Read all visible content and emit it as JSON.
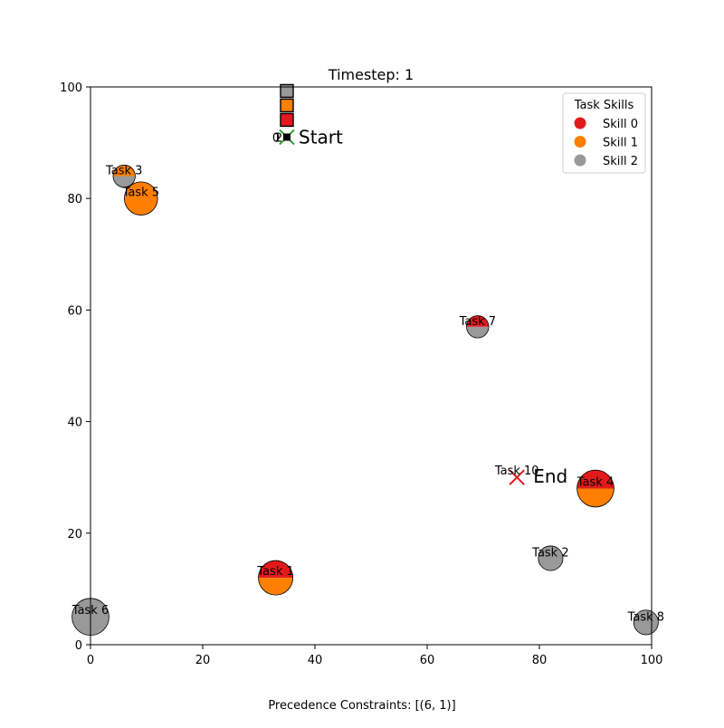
{
  "chart_data": {
    "type": "scatter",
    "title": "Timestep: 1",
    "xlim": [
      0,
      100
    ],
    "ylim": [
      0,
      100
    ],
    "x_ticks": [
      0,
      20,
      40,
      60,
      80,
      100
    ],
    "y_ticks": [
      0,
      20,
      40,
      60,
      80,
      100
    ],
    "grid": false,
    "legend": {
      "title": "Task Skills",
      "placement": "top-right",
      "entries": [
        {
          "label": "Skill 0",
          "color": "#e31a1c"
        },
        {
          "label": "Skill 1",
          "color": "#ff7f00"
        },
        {
          "label": "Skill 2",
          "color": "#999999"
        }
      ]
    },
    "tasks": [
      {
        "label": "Task 1",
        "x": 33,
        "y": 12,
        "size": 2.8,
        "skills": [
          0,
          1
        ]
      },
      {
        "label": "Task 2",
        "x": 82,
        "y": 15.5,
        "size": 2.0,
        "skills": [
          2
        ]
      },
      {
        "label": "Task 3",
        "x": 6,
        "y": 84,
        "size": 1.8,
        "skills": [
          1,
          2
        ]
      },
      {
        "label": "Task 4",
        "x": 90,
        "y": 28,
        "size": 3.0,
        "skills": [
          0,
          1
        ]
      },
      {
        "label": "Task 5",
        "x": 9,
        "y": 80,
        "size": 2.7,
        "skills": [
          1
        ]
      },
      {
        "label": "Task 6",
        "x": 0,
        "y": 5,
        "size": 3.0,
        "skills": [
          2
        ]
      },
      {
        "label": "Task 7",
        "x": 69,
        "y": 57,
        "size": 1.8,
        "skills": [
          0,
          2
        ]
      },
      {
        "label": "Task 8",
        "x": 99,
        "y": 4,
        "size": 2.0,
        "skills": [
          2
        ]
      }
    ],
    "start": {
      "label": "Start",
      "x": 35,
      "y": 91
    },
    "end": {
      "label": "End",
      "x": 76,
      "y": 30,
      "task_label": "Task 10"
    },
    "agents": {
      "x": 35,
      "y": 91,
      "ids": [
        "0",
        "1",
        "2"
      ],
      "skills": [
        0,
        1,
        2
      ]
    },
    "footer": "Precedence Constraints: [(6, 1)]"
  }
}
